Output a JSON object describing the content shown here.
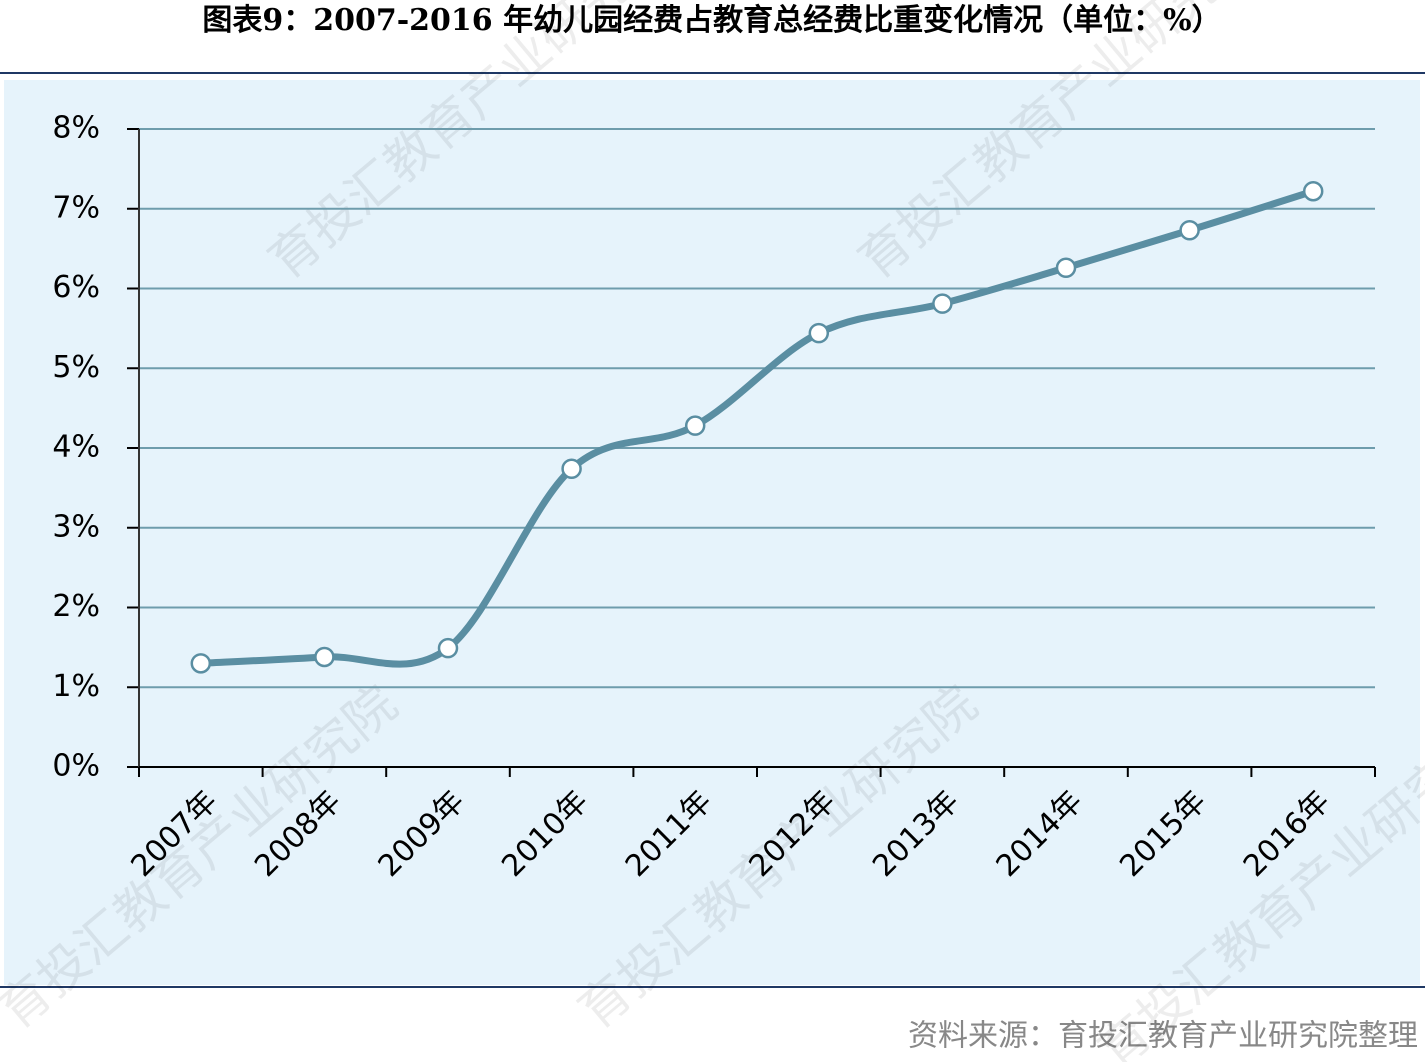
{
  "chart_data": {
    "type": "line",
    "title": "图表9：2007-2016 年幼儿园经费占教育总经费比重变化情况（单位：%）",
    "categories": [
      "2007年",
      "2008年",
      "2009年",
      "2010年",
      "2011年",
      "2012年",
      "2013年",
      "2014年",
      "2015年",
      "2016年"
    ],
    "series": [
      {
        "name": "幼儿园经费占教育总经费比重",
        "color": "#5a8ea2",
        "values": [
          1.3,
          1.38,
          1.49,
          3.74,
          4.28,
          5.44,
          5.81,
          6.26,
          6.73,
          7.22
        ]
      }
    ],
    "ylim": [
      0,
      8
    ],
    "yticks": [
      {
        "value": 0,
        "label": "0%"
      },
      {
        "value": 1,
        "label": "1%"
      },
      {
        "value": 2,
        "label": "2%"
      },
      {
        "value": 3,
        "label": "3%"
      },
      {
        "value": 4,
        "label": "4%"
      },
      {
        "value": 5,
        "label": "5%"
      },
      {
        "value": 6,
        "label": "6%"
      },
      {
        "value": 7,
        "label": "7%"
      },
      {
        "value": 8,
        "label": "8%"
      }
    ],
    "grid": true,
    "smooth": true,
    "source": "资料来源：育投汇教育产业研究院整理",
    "watermark": "育投汇教育产业研究院"
  }
}
